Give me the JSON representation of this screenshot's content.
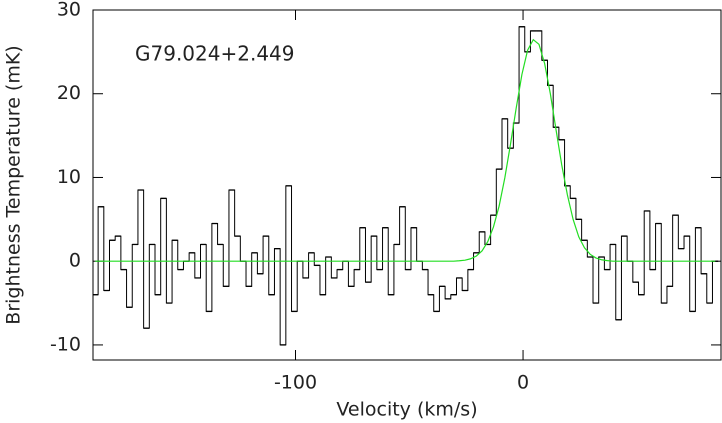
{
  "chart_data": {
    "type": "step",
    "annotation": "G79.024+2.449",
    "xlabel": "Velocity (km/s)",
    "ylabel": "Brightness Temperature (mK)",
    "xlim": [
      -189,
      87
    ],
    "ylim": [
      -11.8,
      30
    ],
    "xticks": [
      -100,
      0
    ],
    "yticks": [
      -10,
      0,
      10,
      20,
      30
    ],
    "x": [
      -188,
      -185.5,
      -183,
      -180.5,
      -178,
      -175.5,
      -173,
      -170.5,
      -168,
      -165.5,
      -163,
      -160.5,
      -158,
      -155.5,
      -153,
      -150.5,
      -148,
      -145.5,
      -143,
      -140.5,
      -138,
      -135.5,
      -133,
      -130.5,
      -128,
      -125.5,
      -123,
      -120.5,
      -118,
      -115.5,
      -113,
      -110.5,
      -108,
      -105.5,
      -103,
      -100.5,
      -98,
      -95.5,
      -93,
      -90.5,
      -88,
      -85.5,
      -83,
      -80.5,
      -78,
      -75.5,
      -73,
      -70.5,
      -68,
      -65.5,
      -63,
      -60.5,
      -58,
      -55.5,
      -53,
      -50.5,
      -48,
      -45.5,
      -43,
      -40.5,
      -38,
      -35.5,
      -33,
      -30.5,
      -28,
      -25.5,
      -23,
      -20.5,
      -18,
      -15.5,
      -13,
      -10.5,
      -8,
      -5.5,
      -3,
      -0.5,
      2,
      4.5,
      7,
      9.5,
      12,
      14.5,
      17,
      19.5,
      22,
      24.5,
      27,
      29.5,
      32,
      34.5,
      37,
      39.5,
      42,
      44.5,
      47,
      49.5,
      52,
      54.5,
      57,
      59.5,
      62,
      64.5,
      67,
      69.5,
      72,
      74.5,
      77,
      79.5,
      82,
      84.5
    ],
    "series": [
      {
        "color": "#000000",
        "values": [
          -4,
          6.5,
          -3.5,
          2.5,
          3,
          -1,
          -5.5,
          2,
          8.5,
          -8,
          2,
          -4,
          7.5,
          -5,
          2.5,
          -1,
          0,
          1,
          -2,
          2,
          -6,
          4.5,
          2,
          -3,
          8.5,
          3,
          0,
          -3,
          1,
          -1.5,
          3,
          -4,
          1.5,
          -10,
          9,
          -6,
          0,
          -2,
          1,
          -0.5,
          -4,
          0.5,
          -2,
          -1,
          0,
          -3,
          -1,
          4,
          -2.5,
          3,
          -1,
          4,
          -4,
          2,
          6.5,
          -1,
          4,
          0,
          -1,
          -4,
          -6,
          -3,
          -4.5,
          -4,
          -2,
          -3.5,
          -1,
          1,
          3.5,
          2,
          5.5,
          11,
          17,
          13.5,
          16.5,
          28,
          25,
          27.5,
          27.5,
          24,
          21,
          16,
          14.5,
          9,
          7.5,
          5,
          2.5,
          0.5,
          -5,
          0.5,
          -1,
          2,
          -7,
          3,
          0,
          -2.5,
          -4,
          6,
          -1,
          4.5,
          -5,
          -3,
          5.5,
          1.5,
          3,
          -6,
          4,
          -1.5,
          -5,
          0
        ]
      },
      {
        "color": "#22dd22",
        "values": [
          0,
          0,
          0,
          0,
          0,
          0,
          0,
          0,
          0,
          0,
          0,
          0,
          0,
          0,
          0,
          0,
          0,
          0,
          0,
          0,
          0,
          0,
          0,
          0,
          0,
          0,
          0,
          0,
          0,
          0,
          0,
          0,
          0,
          0,
          0,
          0,
          0,
          0,
          0,
          0,
          0,
          0,
          0,
          0,
          0,
          0,
          0,
          0,
          0,
          0,
          0,
          0,
          0,
          0,
          0,
          0,
          0,
          0,
          0,
          0,
          0,
          0,
          0,
          0,
          0.05,
          0.12,
          0.29,
          0.62,
          1.24,
          2.34,
          4.09,
          6.6,
          9.97,
          14.0,
          18.3,
          22.3,
          25.2,
          26.46,
          25.9,
          23.6,
          20.0,
          15.7,
          11.5,
          7.9,
          5.0,
          2.9,
          1.6,
          0.82,
          0.39,
          0.17,
          0.07,
          0,
          0,
          0,
          0,
          0,
          0,
          0,
          0,
          0,
          0,
          0,
          0,
          0,
          0,
          0,
          0,
          0,
          0,
          0
        ]
      }
    ]
  }
}
